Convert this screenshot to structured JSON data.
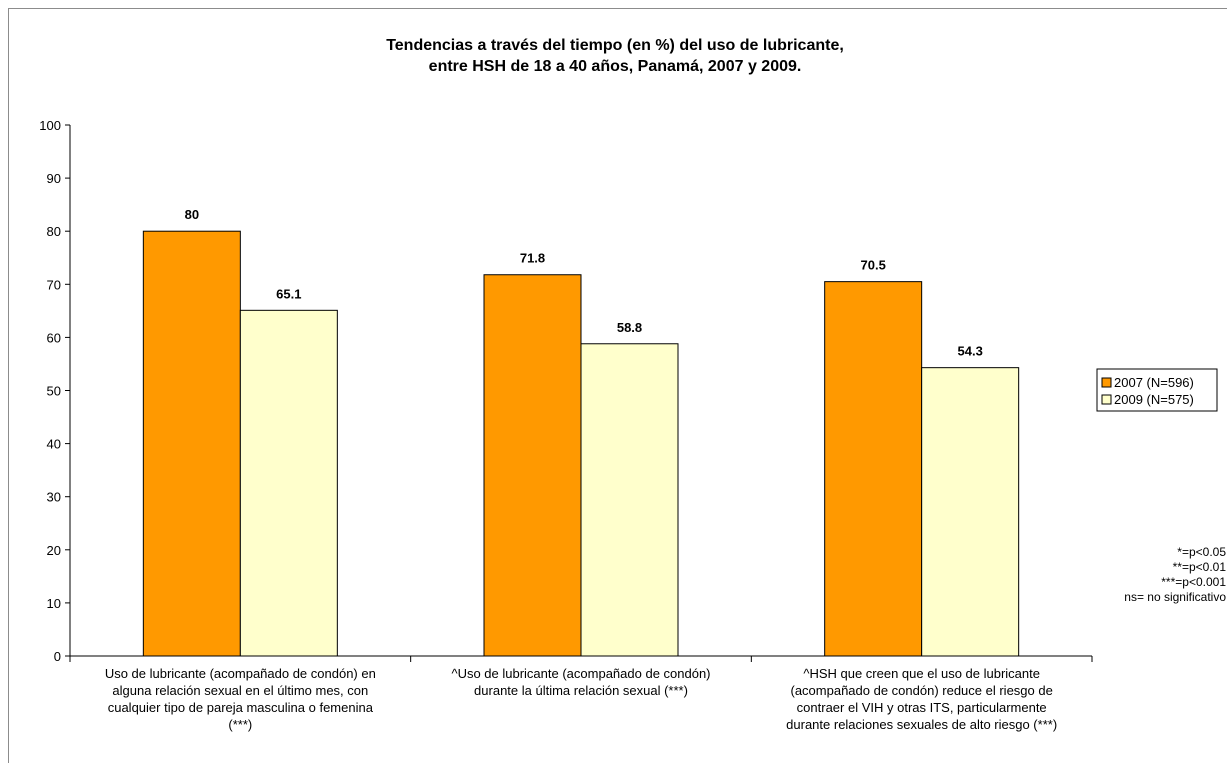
{
  "chart_data": {
    "type": "bar",
    "title": [
      "Tendencias a través del tiempo (en %) del uso de lubricante,",
      "entre HSH de 18 a 40 años, Panamá, 2007 y 2009."
    ],
    "categories": [
      [
        "Uso de lubricante (acompañado de condón) en",
        "alguna relación sexual en el último mes, con",
        "cualquier tipo de pareja masculina o femenina",
        "(***)"
      ],
      [
        "^Uso de lubricante (acompañado de condón)",
        "durante la última relación sexual (***)"
      ],
      [
        "^HSH que creen que el uso de lubricante",
        "(acompañado de condón) reduce el riesgo de",
        "contraer el VIH y otras ITS, particularmente",
        "durante relaciones sexuales de alto riesgo (***)"
      ]
    ],
    "series": [
      {
        "name": "2007 (N=596)",
        "values": [
          80,
          71.8,
          70.5
        ],
        "color": "#ff9900"
      },
      {
        "name": "2009 (N=575)",
        "values": [
          65.1,
          58.8,
          54.3
        ],
        "color": "#ffffcc"
      }
    ],
    "data_labels": [
      [
        "80",
        "71.8",
        "70.5"
      ],
      [
        "65.1",
        "58.8",
        "54.3"
      ]
    ],
    "yticks": [
      "0",
      "10",
      "20",
      "30",
      "40",
      "50",
      "60",
      "70",
      "80",
      "90",
      "100"
    ],
    "ylim": [
      0,
      100
    ],
    "legend_position": "right",
    "notes": [
      "*=p<0.05",
      "**=p<0.01",
      "***=p<0.001",
      "ns= no significativo"
    ]
  }
}
